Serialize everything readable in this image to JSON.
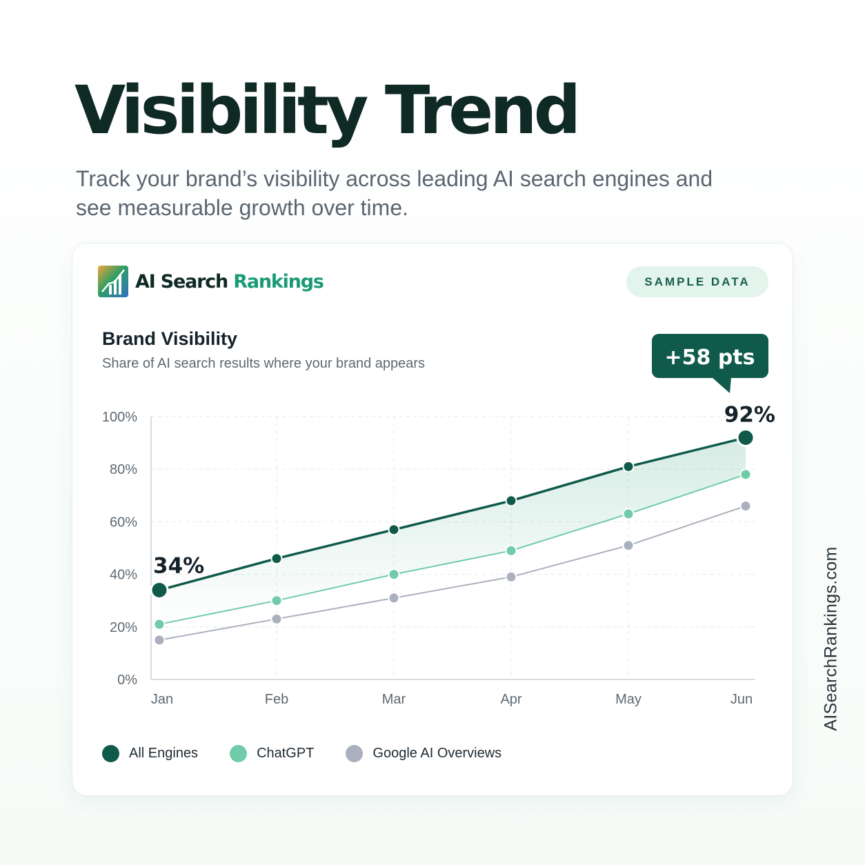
{
  "title": "Visibility Trend",
  "subtitle": "Track your brand’s visibility across leading AI search engines and see measurable growth over time.",
  "brand": {
    "name_part1": "AI Search",
    "name_part2": "Rankings"
  },
  "badge": "SAMPLE DATA",
  "side_domain": "AISearchRankings.com",
  "colors": {
    "all_engines": "#0f5a4a",
    "chatgpt": "#6fcba8",
    "google_ai_overviews": "#aab0bd",
    "brand_accent": "#1a9a76",
    "callout": "#0f5a4a"
  },
  "icons": {
    "logo": "bar-chart-logo-icon"
  },
  "chart_data": {
    "type": "line",
    "title": "Brand Visibility",
    "subtitle": "Share of AI search results where your brand appears",
    "x": [
      "Jan",
      "Feb",
      "Mar",
      "Apr",
      "May",
      "Jun"
    ],
    "ylim": [
      0,
      100
    ],
    "y_ticks": [
      "0%",
      "20%",
      "40%",
      "60%",
      "80%",
      "100%"
    ],
    "grid": true,
    "legend_position": "bottom-left",
    "series": [
      {
        "name": "All Engines",
        "values": [
          34,
          46,
          57,
          68,
          81,
          92
        ],
        "color": "#0f5a4a",
        "area_fill": true
      },
      {
        "name": "ChatGPT",
        "values": [
          21,
          30,
          40,
          49,
          63,
          78
        ],
        "color": "#6fcba8"
      },
      {
        "name": "Google AI Overviews",
        "values": [
          15,
          23,
          31,
          39,
          51,
          66
        ],
        "color": "#aab0bd"
      }
    ],
    "annotations": {
      "start_label": "34%",
      "end_label": "92%",
      "callout": "+58 pts"
    }
  }
}
